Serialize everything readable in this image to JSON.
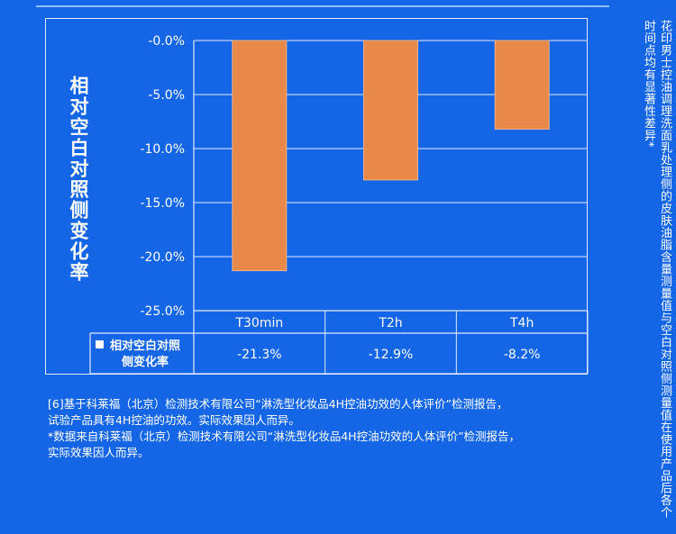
{
  "chart_data": {
    "type": "bar",
    "categories": [
      "T30min",
      "T2h",
      "T4h"
    ],
    "values": [
      -21.3,
      -12.9,
      -8.2
    ],
    "value_labels": [
      "-21.3%",
      "-12.9%",
      "-8.2%"
    ],
    "ylim": [
      -25,
      0
    ],
    "yticks": [
      0,
      -5,
      -10,
      -15,
      -20,
      -25
    ],
    "ytick_labels": [
      "-0.0%",
      "-5.0%",
      "-10.0%",
      "-15.0%",
      "-20.0%",
      "-25.0%"
    ],
    "ylabel": "相对空白对照侧变化率",
    "grid": true,
    "bar_color": "#e8894a",
    "table_series_label": "相对空白对照侧变化率"
  },
  "side_note": "花印男士控油调理洗面乳处理侧的皮肤油脂含量测量值与空白对照侧测量值在使用产品后各个时间点均有显著性差异*",
  "footnotes": [
    "[6]基于科莱福（北京）检测技术有限公司“淋洗型化妆品4H控油功效的人体评价”检测报告，",
    "试验产品具有4H控油的功效。实际效果因人而异。",
    "*数据来自科莱福（北京）检测技术有限公司“淋洗型化妆品4H控油功效的人体评价”检测报告，",
    "实际效果因人而异。"
  ],
  "colors": {
    "background": "#1466e6",
    "grid": "#dfe9ff",
    "bar_fill": "#e8894a",
    "bar_stroke": "#f2b08a"
  }
}
